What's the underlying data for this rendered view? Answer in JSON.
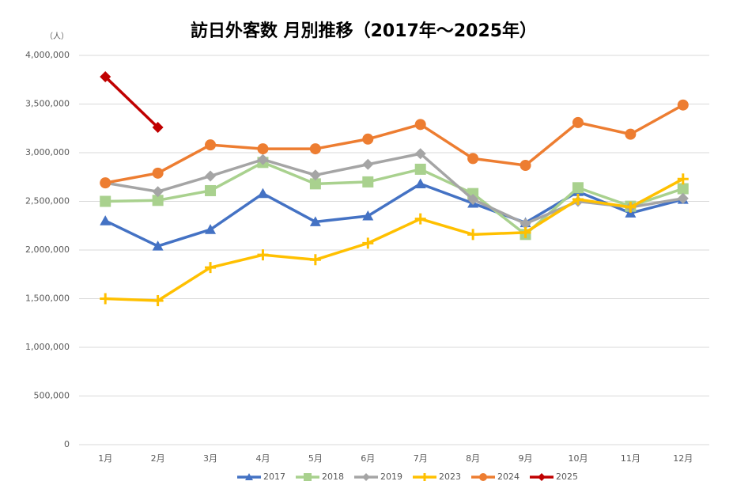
{
  "chart_data": {
    "type": "line",
    "title": "訪日外客数 月別推移（2017年～2025年）",
    "y_unit": "（人）",
    "categories": [
      "1月",
      "2月",
      "3月",
      "4月",
      "5月",
      "6月",
      "7月",
      "8月",
      "9月",
      "10月",
      "11月",
      "12月"
    ],
    "ylim": [
      0,
      4000000
    ],
    "yticks": [
      0,
      {
        "value": 500000,
        "label": "500,000"
      },
      {
        "value": 1000000,
        "label": "1,000,000"
      },
      {
        "value": 1500000,
        "label": "1,500,000"
      },
      {
        "value": 2000000,
        "label": "2,000,000"
      },
      {
        "value": 2500000,
        "label": "2,500,000"
      },
      {
        "value": 3000000,
        "label": "3,000,000"
      },
      {
        "value": 3500000,
        "label": "3,500,000"
      },
      {
        "value": 4000000,
        "label": "4,000,000"
      }
    ],
    "grid": true,
    "legend": "bottom",
    "series": [
      {
        "name": "2017",
        "color": "#4472c4",
        "marker": "triangle",
        "values": [
          2300000,
          2040000,
          2210000,
          2580000,
          2290000,
          2350000,
          2680000,
          2480000,
          2280000,
          2600000,
          2380000,
          2520000
        ]
      },
      {
        "name": "2018",
        "color": "#a9d18e",
        "marker": "square",
        "values": [
          2500000,
          2510000,
          2610000,
          2900000,
          2680000,
          2700000,
          2830000,
          2580000,
          2160000,
          2640000,
          2450000,
          2630000
        ]
      },
      {
        "name": "2019",
        "color": "#a5a5a5",
        "marker": "diamond",
        "values": [
          2690000,
          2600000,
          2760000,
          2930000,
          2770000,
          2880000,
          2990000,
          2520000,
          2270000,
          2500000,
          2440000,
          2530000
        ]
      },
      {
        "name": "2023",
        "color": "#ffc000",
        "marker": "plus",
        "values": [
          1500000,
          1480000,
          1820000,
          1950000,
          1900000,
          2070000,
          2320000,
          2160000,
          2180000,
          2520000,
          2440000,
          2730000
        ]
      },
      {
        "name": "2024",
        "color": "#ed7d31",
        "marker": "circle",
        "values": [
          2690000,
          2790000,
          3080000,
          3040000,
          3040000,
          3140000,
          3290000,
          2940000,
          2870000,
          3310000,
          3190000,
          3490000
        ]
      },
      {
        "name": "2025",
        "color": "#c00000",
        "marker": "diamond",
        "values": [
          3780000,
          3260000,
          null,
          null,
          null,
          null,
          null,
          null,
          null,
          null,
          null,
          null
        ]
      }
    ]
  }
}
